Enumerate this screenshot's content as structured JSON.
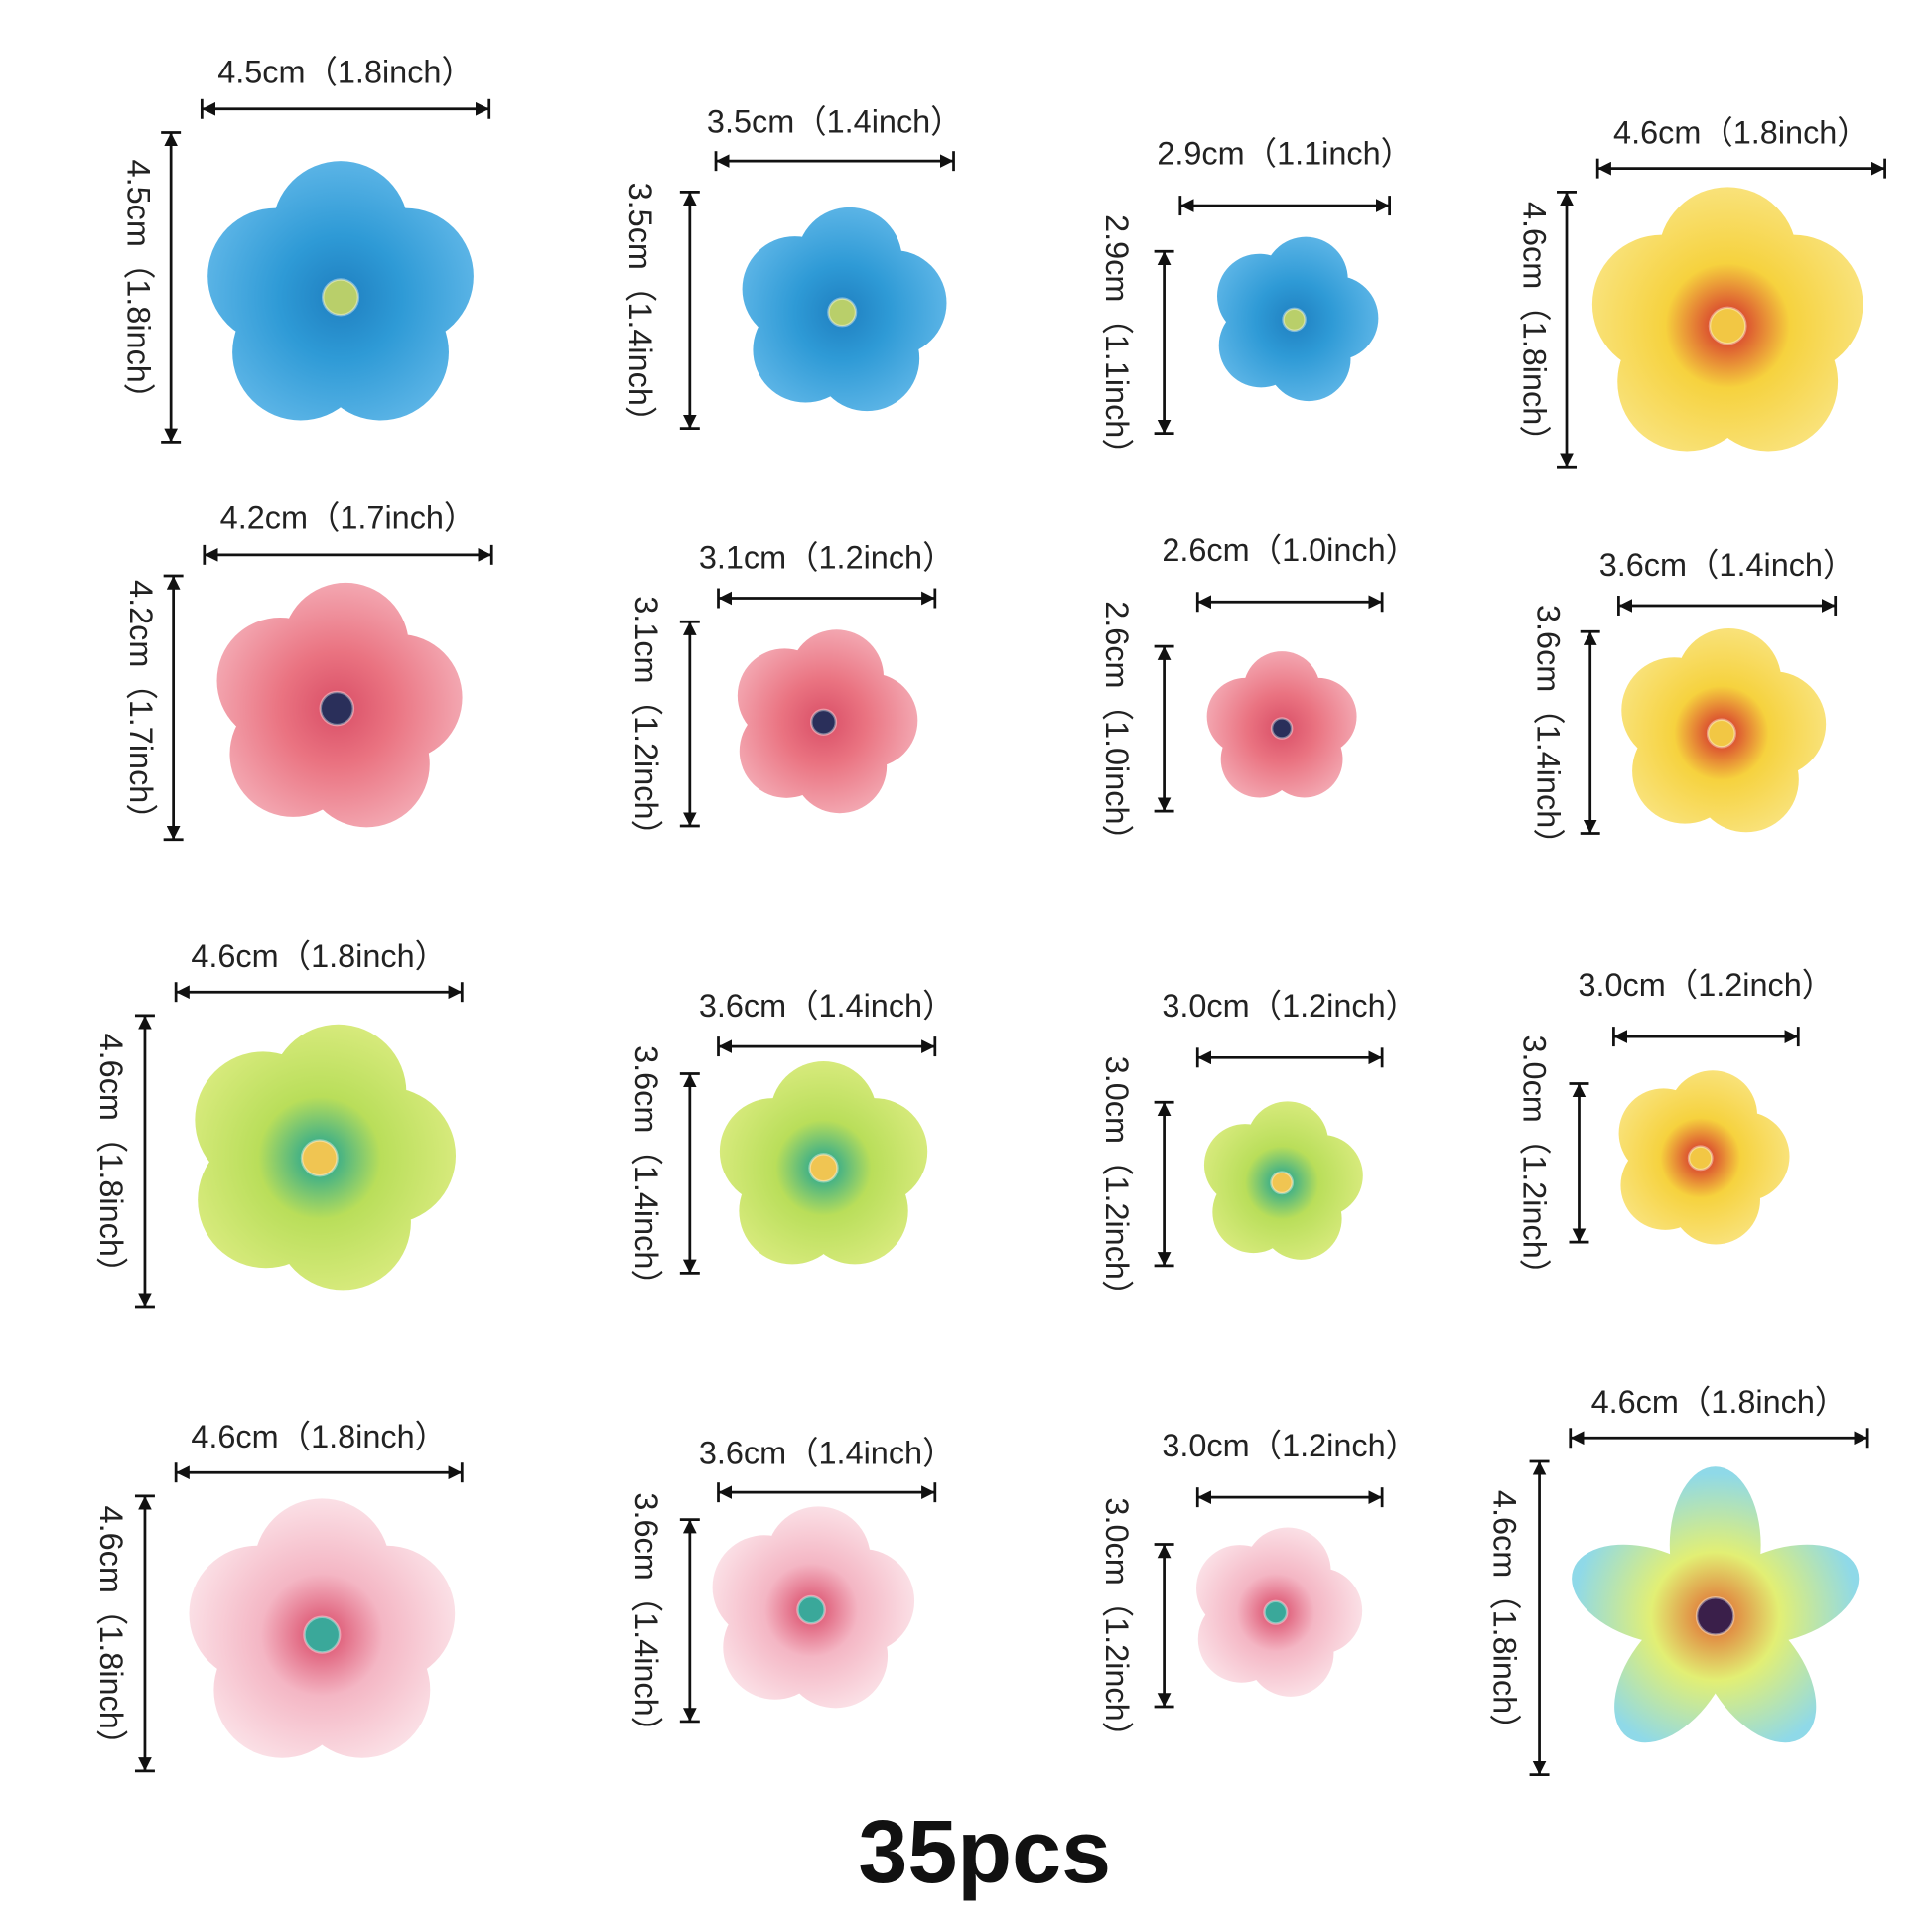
{
  "items": [
    {
      "width_label": "4.5cm（1.8inch）",
      "height_label": "4.5cm（1.8inch）"
    },
    {
      "width_label": "3.5cm（1.4inch）",
      "height_label": "3.5cm（1.4inch）"
    },
    {
      "width_label": "2.9cm（1.1inch）",
      "height_label": "2.9cm（1.1inch）"
    },
    {
      "width_label": "4.6cm（1.8inch）",
      "height_label": "4.6cm（1.8inch）"
    },
    {
      "width_label": "4.2cm（1.7inch）",
      "height_label": "4.2cm（1.7inch）"
    },
    {
      "width_label": "3.1cm（1.2inch）",
      "height_label": "3.1cm（1.2inch）"
    },
    {
      "width_label": "2.6cm（1.0inch）",
      "height_label": "2.6cm（1.0inch）"
    },
    {
      "width_label": "3.6cm（1.4inch）",
      "height_label": "3.6cm（1.4inch）"
    },
    {
      "width_label": "4.6cm（1.8inch）",
      "height_label": "4.6cm（1.8inch）"
    },
    {
      "width_label": "3.6cm（1.4inch）",
      "height_label": "3.6cm（1.4inch）"
    },
    {
      "width_label": "3.0cm（1.2inch）",
      "height_label": "3.0cm（1.2inch）"
    },
    {
      "width_label": "3.0cm（1.2inch）",
      "height_label": "3.0cm（1.2inch）"
    },
    {
      "width_label": "4.6cm（1.8inch）",
      "height_label": "4.6cm（1.8inch）"
    },
    {
      "width_label": "3.6cm（1.4inch）",
      "height_label": "3.6cm（1.4inch）"
    },
    {
      "width_label": "3.0cm（1.2inch）",
      "height_label": "3.0cm（1.2inch）"
    },
    {
      "width_label": "4.6cm（1.8inch）",
      "height_label": "4.6cm（1.8inch）"
    }
  ],
  "footer": "35pcs"
}
